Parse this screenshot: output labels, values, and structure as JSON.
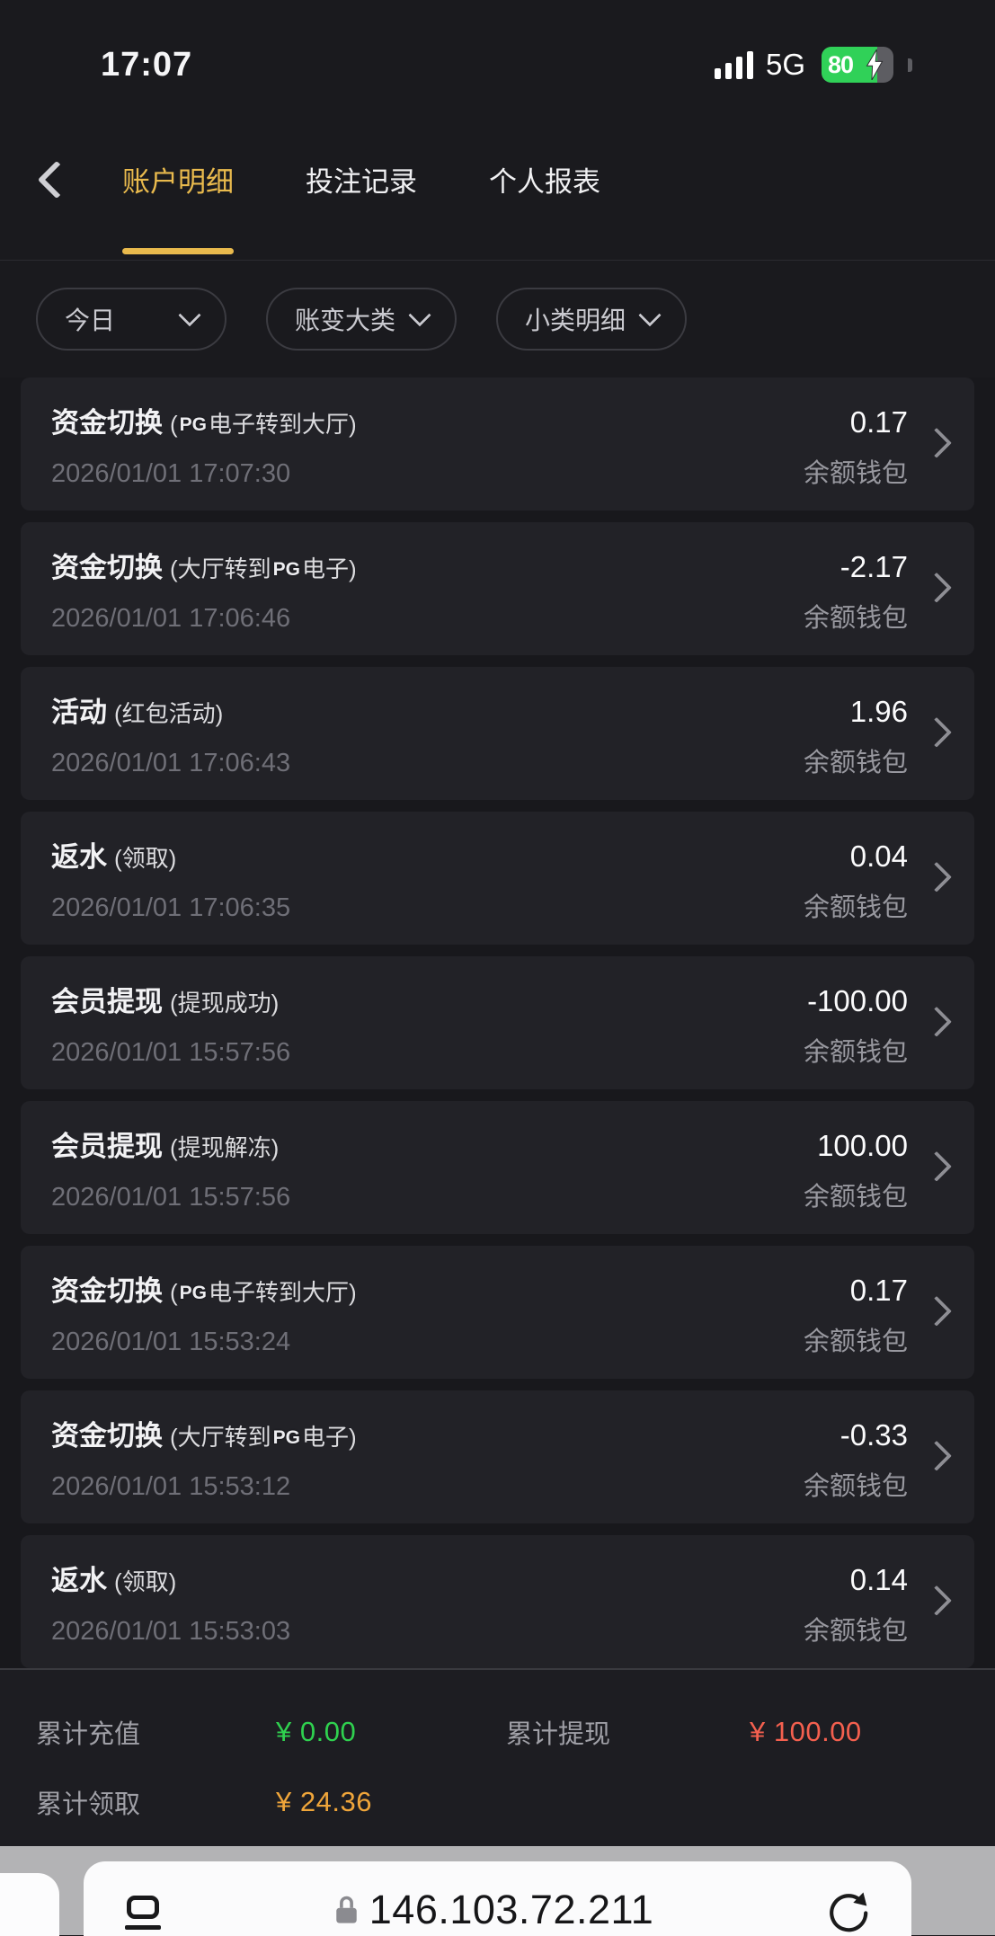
{
  "colors": {
    "accent_gold": "#e9ba4d",
    "green": "#2fd14f",
    "red": "#f4604f",
    "gold_amount": "#efa53a"
  },
  "status_bar": {
    "time": "17:07",
    "network": "5G",
    "battery_percent": "80",
    "battery_state": "charging",
    "signal_bars": 4
  },
  "header": {
    "back_icon": "chevron-left",
    "tabs": [
      {
        "label": "账户明细",
        "active": true
      },
      {
        "label": "投注记录",
        "active": false
      },
      {
        "label": "个人报表",
        "active": false
      }
    ]
  },
  "filters": [
    {
      "label": "今日"
    },
    {
      "label": "账变大类"
    },
    {
      "label": "小类明细"
    }
  ],
  "transactions": [
    {
      "title": "资金切换",
      "subtitle_segments": [
        {
          "text": "("
        },
        {
          "logo": "PG"
        },
        {
          "text": "电子转到大厅)"
        }
      ],
      "amount": "0.17",
      "datetime": "2026/01/01 17:07:30",
      "wallet": "余额钱包"
    },
    {
      "title": "资金切换",
      "subtitle_segments": [
        {
          "text": "(大厅转到"
        },
        {
          "logo": "PG"
        },
        {
          "text": "电子)"
        }
      ],
      "amount": "-2.17",
      "datetime": "2026/01/01 17:06:46",
      "wallet": "余额钱包"
    },
    {
      "title": "活动",
      "subtitle_segments": [
        {
          "text": "(红包活动)"
        }
      ],
      "amount": "1.96",
      "datetime": "2026/01/01 17:06:43",
      "wallet": "余额钱包"
    },
    {
      "title": "返水",
      "subtitle_segments": [
        {
          "text": "(领取)"
        }
      ],
      "amount": "0.04",
      "datetime": "2026/01/01 17:06:35",
      "wallet": "余额钱包"
    },
    {
      "title": "会员提现",
      "subtitle_segments": [
        {
          "text": "(提现成功)"
        }
      ],
      "amount": "-100.00",
      "datetime": "2026/01/01 15:57:56",
      "wallet": "余额钱包"
    },
    {
      "title": "会员提现",
      "subtitle_segments": [
        {
          "text": "(提现解冻)"
        }
      ],
      "amount": "100.00",
      "datetime": "2026/01/01 15:57:56",
      "wallet": "余额钱包"
    },
    {
      "title": "资金切换",
      "subtitle_segments": [
        {
          "text": "("
        },
        {
          "logo": "PG"
        },
        {
          "text": "电子转到大厅)"
        }
      ],
      "amount": "0.17",
      "datetime": "2026/01/01 15:53:24",
      "wallet": "余额钱包"
    },
    {
      "title": "资金切换",
      "subtitle_segments": [
        {
          "text": "(大厅转到"
        },
        {
          "logo": "PG"
        },
        {
          "text": "电子)"
        }
      ],
      "amount": "-0.33",
      "datetime": "2026/01/01 15:53:12",
      "wallet": "余额钱包"
    },
    {
      "title": "返水",
      "subtitle_segments": [
        {
          "text": "(领取)"
        }
      ],
      "amount": "0.14",
      "datetime": "2026/01/01 15:53:03",
      "wallet": "余额钱包"
    }
  ],
  "summary": {
    "cells": [
      {
        "label": "累计充值",
        "value": "¥ 0.00",
        "color": "green"
      },
      {
        "label": "累计提现",
        "value": "¥ 100.00",
        "color": "red"
      },
      {
        "label": "累计领取",
        "value": "¥ 24.36",
        "color": "gold"
      }
    ]
  },
  "browser_bar": {
    "url": "146.103.72.211",
    "lock_icon": "lock",
    "reload_icon": "reload",
    "reader_icon": "page-list",
    "left_tab_icon": "adjacent-tab"
  }
}
